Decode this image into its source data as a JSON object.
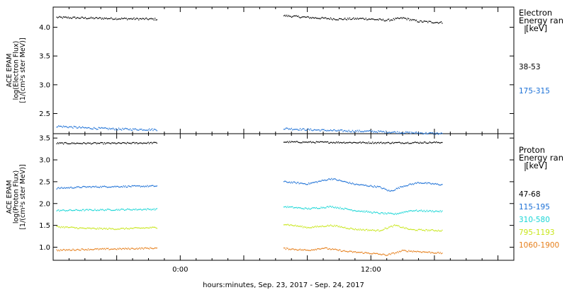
{
  "xlabel": "hours:minutes, Sep. 23, 2017 - Sep. 24, 2017",
  "x_ticks": [
    {
      "t": 0,
      "label": "0:00"
    },
    {
      "t": 12,
      "label": "12:00"
    }
  ],
  "x_range_hours": [
    -8,
    21
  ],
  "colors": {
    "black": "#000000",
    "blue": "#1a6fd6",
    "cyan": "#19d6d6",
    "yellow": "#c8e619",
    "orange": "#e67e19"
  },
  "chart_data": [
    {
      "type": "scatter",
      "panel": "electron",
      "ylabel_lines": [
        "ACE EPAM",
        "log(Electron Flux)",
        "[1/(cm²s ster MeV)]"
      ],
      "ylim": [
        2.15,
        4.35
      ],
      "yticks": [
        2.5,
        3.0,
        3.5,
        4.0
      ],
      "legend_title": [
        "Electron",
        "Energy ran",
        "[keV]"
      ],
      "series": [
        {
          "name": "38-53",
          "color": "black",
          "segments": [
            {
              "t_start": -7.8,
              "t_end": -1.5,
              "points": [
                [
                  -7.8,
                  4.17
                ],
                [
                  -6,
                  4.16
                ],
                [
                  -4,
                  4.15
                ],
                [
                  -1.5,
                  4.14
                ]
              ]
            },
            {
              "t_start": 6.5,
              "t_end": 16.5,
              "points": [
                [
                  6.5,
                  4.2
                ],
                [
                  8,
                  4.17
                ],
                [
                  10,
                  4.14
                ],
                [
                  11.5,
                  4.15
                ],
                [
                  13,
                  4.12
                ],
                [
                  14,
                  4.16
                ],
                [
                  15,
                  4.1
                ],
                [
                  16.5,
                  4.08
                ]
              ]
            }
          ]
        },
        {
          "name": "175-315",
          "color": "blue",
          "segments": [
            {
              "t_start": -7.8,
              "t_end": -1.5,
              "points": [
                [
                  -7.8,
                  2.28
                ],
                [
                  -6,
                  2.25
                ],
                [
                  -4,
                  2.23
                ],
                [
                  -1.5,
                  2.22
                ]
              ]
            },
            {
              "t_start": 6.5,
              "t_end": 16.5,
              "points": [
                [
                  6.5,
                  2.24
                ],
                [
                  8,
                  2.22
                ],
                [
                  10,
                  2.2
                ],
                [
                  12,
                  2.19
                ],
                [
                  14,
                  2.17
                ],
                [
                  16.5,
                  2.15
                ]
              ]
            }
          ]
        }
      ]
    },
    {
      "type": "scatter",
      "panel": "proton",
      "ylabel_lines": [
        "ACE EPAM",
        "log(Proton Flux)",
        "[1/(cm²s ster MeV)]"
      ],
      "ylim": [
        0.7,
        3.6
      ],
      "yticks": [
        1.0,
        1.5,
        2.0,
        2.5,
        3.0,
        3.5
      ],
      "legend_title": [
        "Proton",
        "Energy ran",
        "[keV]"
      ],
      "series": [
        {
          "name": "47-68",
          "color": "black",
          "segments": [
            {
              "t_start": -7.8,
              "t_end": -1.5,
              "points": [
                [
                  -7.8,
                  3.38
                ],
                [
                  -4,
                  3.38
                ],
                [
                  -1.5,
                  3.39
                ]
              ]
            },
            {
              "t_start": 6.5,
              "t_end": 16.5,
              "points": [
                [
                  6.5,
                  3.41
                ],
                [
                  10,
                  3.4
                ],
                [
                  13,
                  3.39
                ],
                [
                  16.5,
                  3.4
                ]
              ]
            }
          ]
        },
        {
          "name": "115-195",
          "color": "blue",
          "segments": [
            {
              "t_start": -7.8,
              "t_end": -1.5,
              "points": [
                [
                  -7.8,
                  2.35
                ],
                [
                  -6,
                  2.38
                ],
                [
                  -4,
                  2.39
                ],
                [
                  -1.5,
                  2.4
                ]
              ]
            },
            {
              "t_start": 6.5,
              "t_end": 16.5,
              "points": [
                [
                  6.5,
                  2.5
                ],
                [
                  8,
                  2.45
                ],
                [
                  9.5,
                  2.57
                ],
                [
                  11,
                  2.44
                ],
                [
                  12.5,
                  2.38
                ],
                [
                  13.2,
                  2.28
                ],
                [
                  14,
                  2.4
                ],
                [
                  15,
                  2.48
                ],
                [
                  16.5,
                  2.43
                ]
              ]
            }
          ]
        },
        {
          "name": "310-580",
          "color": "cyan",
          "segments": [
            {
              "t_start": -7.8,
              "t_end": -1.5,
              "points": [
                [
                  -7.8,
                  1.84
                ],
                [
                  -6,
                  1.85
                ],
                [
                  -4,
                  1.86
                ],
                [
                  -1.5,
                  1.87
                ]
              ]
            },
            {
              "t_start": 6.5,
              "t_end": 16.5,
              "points": [
                [
                  6.5,
                  1.93
                ],
                [
                  8,
                  1.88
                ],
                [
                  9.5,
                  1.93
                ],
                [
                  11,
                  1.84
                ],
                [
                  12.5,
                  1.78
                ],
                [
                  13.5,
                  1.76
                ],
                [
                  14.5,
                  1.84
                ],
                [
                  16.5,
                  1.82
                ]
              ]
            }
          ]
        },
        {
          "name": "795-1193",
          "color": "yellow",
          "segments": [
            {
              "t_start": -7.8,
              "t_end": -1.5,
              "points": [
                [
                  -7.8,
                  1.47
                ],
                [
                  -6,
                  1.43
                ],
                [
                  -4,
                  1.42
                ],
                [
                  -1.5,
                  1.45
                ]
              ]
            },
            {
              "t_start": 6.5,
              "t_end": 16.5,
              "points": [
                [
                  6.5,
                  1.53
                ],
                [
                  8,
                  1.45
                ],
                [
                  9.5,
                  1.5
                ],
                [
                  11,
                  1.41
                ],
                [
                  12.5,
                  1.38
                ],
                [
                  13.5,
                  1.5
                ],
                [
                  14.5,
                  1.4
                ],
                [
                  16.5,
                  1.38
                ]
              ]
            }
          ]
        },
        {
          "name": "1060-1900",
          "color": "orange",
          "segments": [
            {
              "t_start": -7.8,
              "t_end": -1.5,
              "points": [
                [
                  -7.8,
                  0.93
                ],
                [
                  -6,
                  0.95
                ],
                [
                  -4,
                  0.96
                ],
                [
                  -1.5,
                  0.98
                ]
              ]
            },
            {
              "t_start": 6.5,
              "t_end": 16.5,
              "points": [
                [
                  6.5,
                  0.97
                ],
                [
                  8,
                  0.93
                ],
                [
                  9,
                  0.98
                ],
                [
                  10.5,
                  0.9
                ],
                [
                  12,
                  0.86
                ],
                [
                  13,
                  0.82
                ],
                [
                  14,
                  0.92
                ],
                [
                  15,
                  0.9
                ],
                [
                  16.5,
                  0.86
                ]
              ]
            }
          ]
        }
      ]
    }
  ]
}
